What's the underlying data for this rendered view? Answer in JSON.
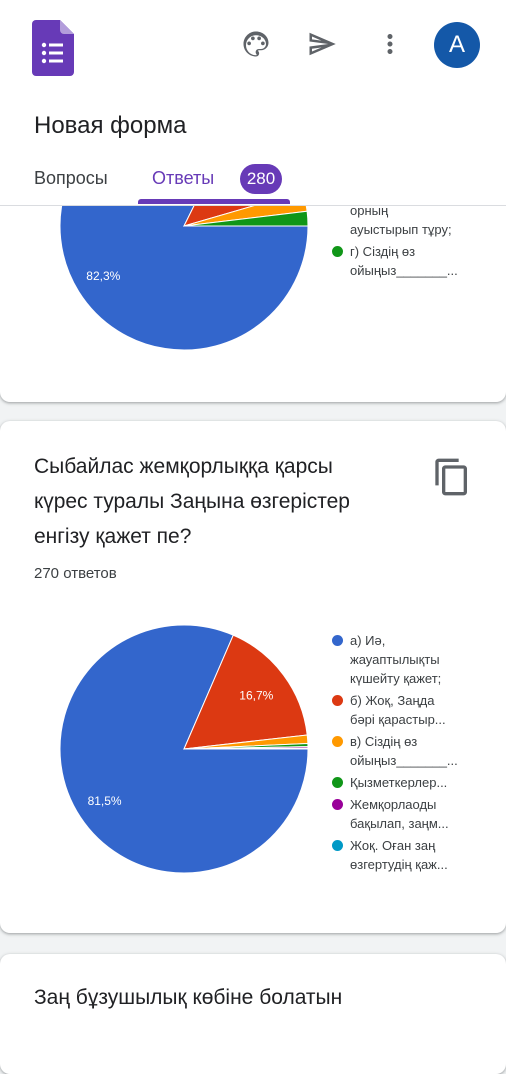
{
  "header": {
    "app_icon": "google-forms-icon",
    "icons": [
      "palette-icon",
      "send-icon",
      "more-vert-icon"
    ],
    "avatar_letter": "A",
    "form_title": "Новая форма",
    "tabs": [
      {
        "label": "Вопросы"
      },
      {
        "label": "Ответы",
        "badge": "280"
      }
    ]
  },
  "colors": {
    "accent": "#673ab7",
    "blue": "#3366cc",
    "red": "#dc3912",
    "orange": "#ff9900",
    "green": "#109618",
    "purple": "#990099",
    "teal": "#0099c6"
  },
  "card1": {
    "legend": [
      {
        "lines": [
          "орның",
          "ауыстырып тұру;"
        ],
        "color": "#ff9900",
        "partial": true
      },
      {
        "lines": [
          "г) Сіздің өз",
          "ойыңыз_______..."
        ],
        "color": "#109618"
      }
    ],
    "chart_data": {
      "type": "pie",
      "slices": [
        {
          "value": 82.3,
          "label": "82,3%",
          "color": "#3366cc"
        },
        {
          "value": 13.2,
          "color": "#dc3912"
        },
        {
          "value": 2.6,
          "color": "#ff9900"
        },
        {
          "value": 1.9,
          "color": "#109618"
        }
      ]
    }
  },
  "card2": {
    "title_lines": [
      "Сыбайлас жемқорлыққа қарсы",
      "күрес туралы Заңына өзгерістер",
      "енгізу қажет пе?"
    ],
    "count": "270 ответов",
    "legend": [
      {
        "lines": [
          "а) Иә,",
          "жауаптылықты",
          "күшейту қажет;"
        ],
        "color": "#3366cc"
      },
      {
        "lines": [
          "б) Жоқ, Заңда",
          "бәрі қарастыр..."
        ],
        "color": "#dc3912"
      },
      {
        "lines": [
          "в) Сіздің өз",
          "ойыңыз_______..."
        ],
        "color": "#ff9900"
      },
      {
        "lines": [
          "Қызметкерлер..."
        ],
        "color": "#109618"
      },
      {
        "lines": [
          "Жемқорлаоды",
          "бақылап, заңм..."
        ],
        "color": "#990099"
      },
      {
        "lines": [
          "Жоқ. Оған заң",
          "өзгертудің қаж..."
        ],
        "color": "#0099c6"
      }
    ],
    "chart_data": {
      "type": "pie",
      "slices": [
        {
          "value": 81.5,
          "label": "81,5%",
          "color": "#3366cc"
        },
        {
          "value": 16.7,
          "label": "16,7%",
          "color": "#dc3912"
        },
        {
          "value": 1.1,
          "color": "#ff9900"
        },
        {
          "value": 0.4,
          "color": "#109618"
        },
        {
          "value": 0.2,
          "color": "#990099"
        },
        {
          "value": 0.1,
          "color": "#0099c6"
        }
      ]
    }
  },
  "card3": {
    "title": "Заң бұзушылық көбіне болатын"
  }
}
